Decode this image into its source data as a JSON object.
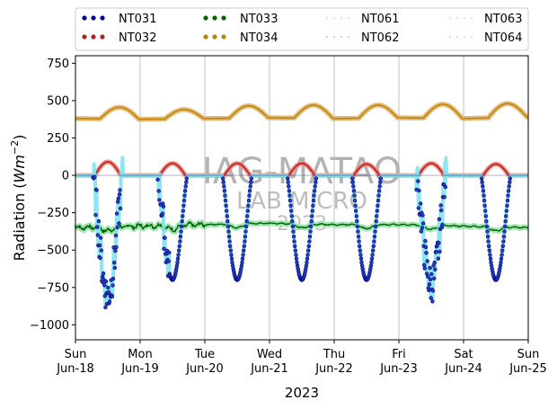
{
  "chart_data": {
    "type": "scatter",
    "title": "",
    "xlabel": "2023",
    "ylabel_prefix": "Radiation (",
    "ylabel_unit_base": "Wm",
    "ylabel_unit_exp": "−2",
    "ylabel_suffix": ")",
    "ylim": [
      -1100,
      800
    ],
    "yticks": [
      -1000,
      -750,
      -500,
      -250,
      0,
      250,
      500,
      750
    ],
    "ytick_labels": [
      "−1000",
      "−750",
      "−500",
      "−250",
      "0",
      "250",
      "500",
      "750"
    ],
    "xlim_days": [
      0,
      7
    ],
    "xticks": [
      {
        "day": "Sun",
        "date": "Jun-18"
      },
      {
        "day": "Mon",
        "date": "Jun-19"
      },
      {
        "day": "Tue",
        "date": "Jun-20"
      },
      {
        "day": "Wed",
        "date": "Jun-21"
      },
      {
        "day": "Thu",
        "date": "Jun-22"
      },
      {
        "day": "Fri",
        "date": "Jun-23"
      },
      {
        "day": "Sat",
        "date": "Jun-24"
      },
      {
        "day": "Sun",
        "date": "Jun-25"
      }
    ],
    "grid": "x-only",
    "legend": "top, outside, 4 columns",
    "watermark": [
      "IAG-MATAO",
      "LAB MICRO",
      "2023"
    ],
    "series": [
      {
        "name": "NT031",
        "color": "#00008b",
        "style": "dots",
        "description_values": {
          "night": 0,
          "daily_min": [
            -810,
            -700,
            -700,
            -700,
            -700,
            -740,
            -700
          ]
        }
      },
      {
        "name": "NT032",
        "color": "#b22222",
        "style": "dots",
        "description_values": {
          "night": 0,
          "daily_max": [
            90,
            80,
            80,
            80,
            75,
            80,
            75
          ]
        }
      },
      {
        "name": "NT033",
        "color": "#006400",
        "style": "dots",
        "description_values": {
          "baseline": [
            -350,
            -340,
            -330,
            -320,
            -330,
            -330,
            -340,
            -350
          ]
        }
      },
      {
        "name": "NT034",
        "color": "#b8860b",
        "style": "dots",
        "description_values": {
          "night": [
            380,
            375,
            380,
            385,
            380,
            385,
            380,
            390
          ],
          "daily_max": [
            455,
            440,
            465,
            470,
            470,
            475,
            480
          ]
        }
      },
      {
        "name": "NT061",
        "color": "#c7f0f0",
        "style": "dots-faint"
      },
      {
        "name": "NT062",
        "color": "#f0c8c8",
        "style": "dots-faint"
      },
      {
        "name": "NT063",
        "color": "#c8f0f0",
        "style": "dots-faint"
      },
      {
        "name": "NT064",
        "color": "#c8ecc8",
        "style": "dots-faint"
      }
    ]
  }
}
